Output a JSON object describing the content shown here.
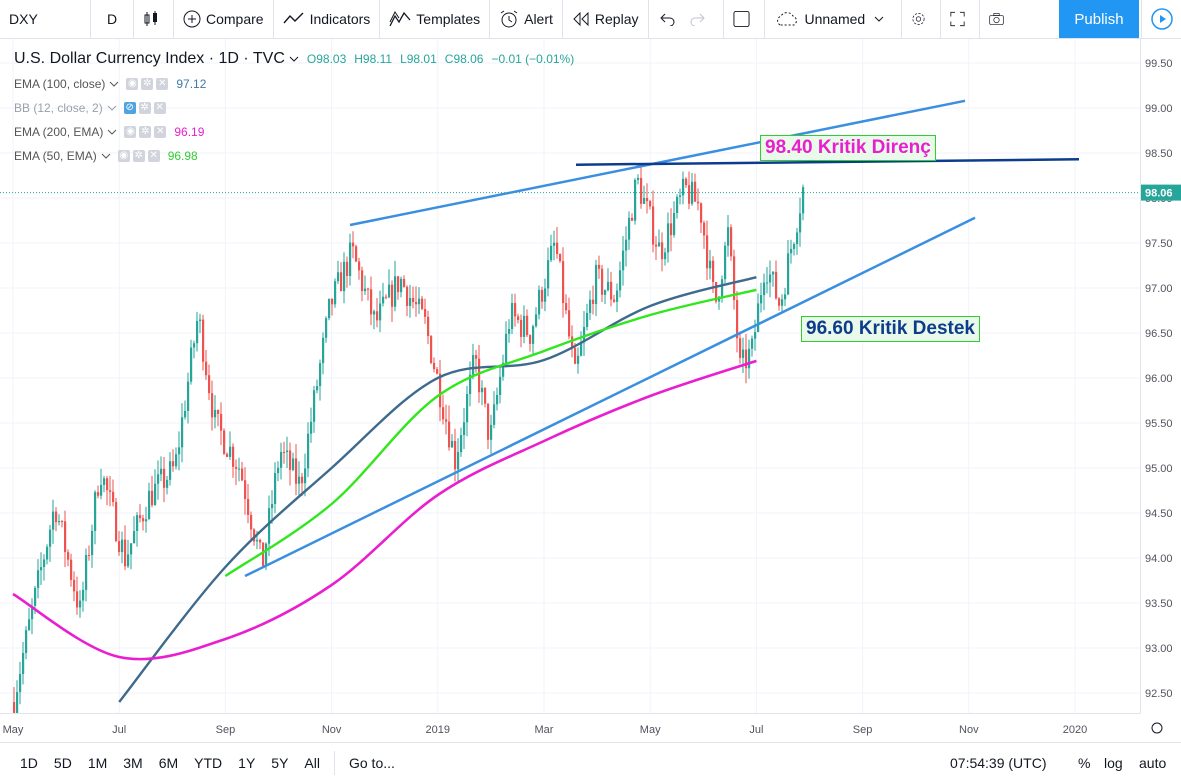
{
  "toolbar": {
    "symbol": "DXY",
    "interval": "D",
    "compare": "Compare",
    "indicators": "Indicators",
    "templates": "Templates",
    "alert": "Alert",
    "replay": "Replay",
    "layout_name": "Unnamed",
    "publish": "Publish"
  },
  "legend": {
    "title": "U.S. Dollar Currency Index · 1D · TVC",
    "open": "O98.03",
    "high": "H98.11",
    "low": "L98.01",
    "close": "C98.06",
    "change": "−0.01 (−0.01%)",
    "indicators": [
      {
        "name": "EMA (100, close)",
        "value": "97.12",
        "color": "#3e7ba6"
      },
      {
        "name": "BB (12, close, 2)",
        "value": "",
        "color": "#7b8ea6"
      },
      {
        "name": "EMA (200, EMA)",
        "value": "96.19",
        "color": "#e91ecf"
      },
      {
        "name": "EMA (50, EMA)",
        "value": "96.98",
        "color": "#32cd32"
      }
    ]
  },
  "annotations": {
    "resistance": "98.40 Kritik Direnç",
    "support": "96.60 Kritik Destek"
  },
  "price_axis": {
    "ticks": [
      "99.50",
      "99.00",
      "98.50",
      "98.00",
      "97.50",
      "97.00",
      "96.50",
      "96.00",
      "95.50",
      "95.00",
      "94.50",
      "94.00",
      "93.50",
      "93.00",
      "92.50"
    ],
    "current": "98.06"
  },
  "time_axis": {
    "ticks": [
      "May",
      "Jul",
      "Sep",
      "Nov",
      "2019",
      "Mar",
      "May",
      "Jul",
      "Sep",
      "Nov",
      "2020"
    ]
  },
  "bottom": {
    "ranges": [
      "1D",
      "5D",
      "1M",
      "3M",
      "6M",
      "YTD",
      "1Y",
      "5Y",
      "All"
    ],
    "goto": "Go to...",
    "clock": "07:54:39 (UTC)",
    "percent": "%",
    "log": "log",
    "auto": "auto"
  },
  "colors": {
    "up": "#26a69a",
    "down": "#ef5350",
    "ema100": "#3e6a8e",
    "ema200": "#e91ecf",
    "ema50": "#32e61e",
    "trend": "#3a8fe0",
    "resistance_line": "#0d3c8c",
    "accent": "#2196f3"
  },
  "chart_data": {
    "type": "line",
    "title": "U.S. Dollar Currency Index · 1D · TVC",
    "ylim": [
      92.2,
      99.7
    ],
    "series": [
      {
        "name": "EMA (100, close)",
        "x": [
          "2018-07",
          "2018-09",
          "2018-11",
          "2019-01",
          "2019-03",
          "2019-05",
          "2019-07"
        ],
        "values": [
          92.4,
          93.9,
          95.0,
          96.0,
          96.2,
          96.8,
          97.12
        ]
      },
      {
        "name": "EMA (200, EMA)",
        "x": [
          "2018-05",
          "2018-07",
          "2018-09",
          "2018-11",
          "2019-01",
          "2019-03",
          "2019-05",
          "2019-07"
        ],
        "values": [
          93.6,
          92.9,
          93.1,
          93.7,
          94.7,
          95.3,
          95.8,
          96.19
        ]
      },
      {
        "name": "EMA (50, EMA)",
        "x": [
          "2018-09",
          "2018-11",
          "2019-01",
          "2019-03",
          "2019-05",
          "2019-07"
        ],
        "values": [
          93.8,
          94.6,
          95.8,
          96.3,
          96.7,
          96.98
        ]
      }
    ],
    "annotations": [
      "98.40 Kritik Direnç",
      "96.60 Kritik Destek"
    ]
  }
}
